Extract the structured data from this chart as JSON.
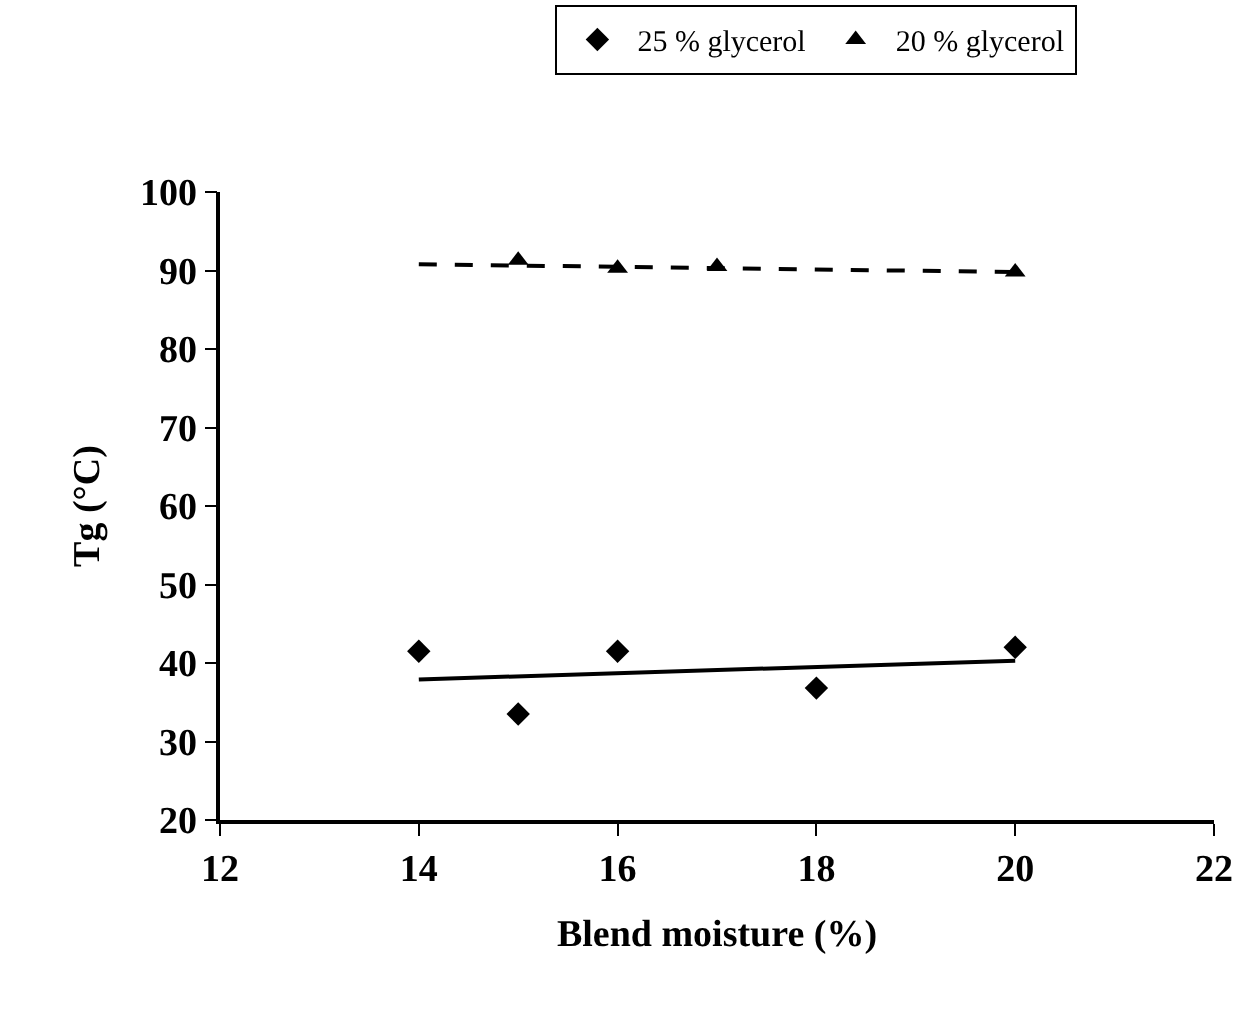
{
  "chart_data": {
    "type": "scatter",
    "xlabel": "Blend moisture (%)",
    "ylabel": "Tg (°C)",
    "xlim": [
      12,
      22
    ],
    "xticks": [
      12,
      14,
      16,
      18,
      20,
      22
    ],
    "ylim": [
      20,
      100
    ],
    "yticks": [
      20,
      30,
      40,
      50,
      60,
      70,
      80,
      90,
      100
    ],
    "legend": "top",
    "series": [
      {
        "name": "25 % glycerol",
        "color": "#000000",
        "marker": "diamond",
        "x": [
          14,
          15,
          16,
          18,
          20
        ],
        "values": [
          41.5,
          33.5,
          41.5,
          36.8,
          42
        ]
      },
      {
        "name": "20 % glycerol",
        "color": "#000000",
        "marker": "triangle",
        "x": [
          15,
          16,
          17,
          20
        ],
        "values": [
          91.3,
          90.3,
          90.5,
          89.8
        ]
      },
      {
        "type": "line",
        "color": "#000000",
        "line_style": "solid",
        "x": [
          14,
          20
        ],
        "values": [
          37.9,
          40.3
        ]
      },
      {
        "type": "line",
        "color": "#000000",
        "line_style": "dashed",
        "x": [
          14,
          20
        ],
        "values": [
          90.8,
          89.8
        ]
      }
    ]
  }
}
